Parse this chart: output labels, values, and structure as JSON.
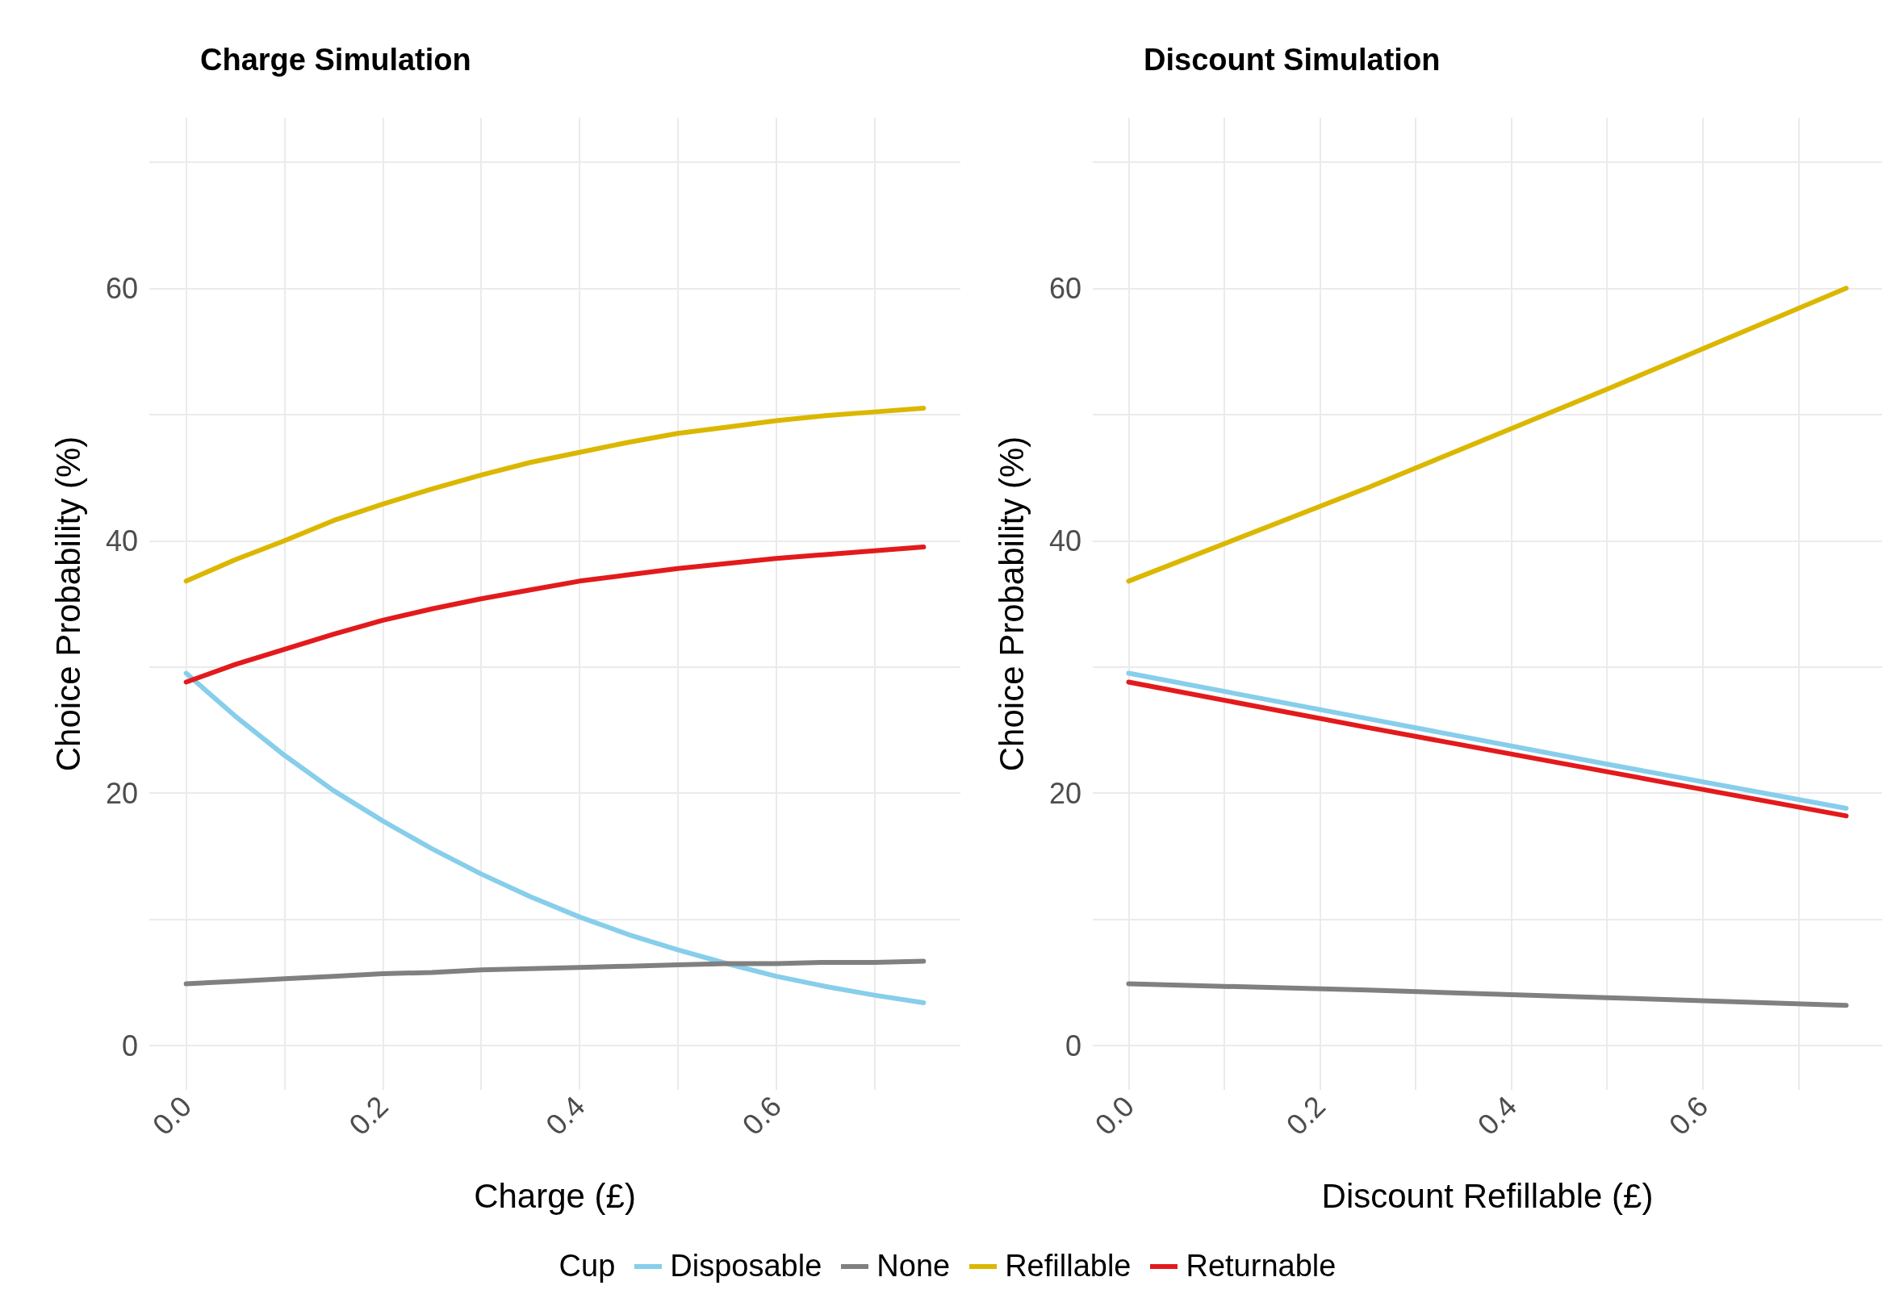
{
  "chart_data": [
    {
      "type": "line",
      "title": "Charge Simulation",
      "xlabel": "Charge (£)",
      "ylabel": "Choice Probability (%)",
      "legend": "bottom",
      "legend_title": "Cup",
      "grid": true,
      "marker": "none",
      "line_style": "solid",
      "x": [
        0,
        0.05,
        0.1,
        0.15,
        0.2,
        0.25,
        0.3,
        0.35,
        0.4,
        0.45,
        0.5,
        0.55,
        0.6,
        0.65,
        0.7,
        0.75
      ],
      "xlim": [
        -0.0375,
        0.7875
      ],
      "xticks": [
        {
          "value": 0,
          "label": "0.0"
        },
        {
          "value": 0.1,
          "label": null
        },
        {
          "value": 0.2,
          "label": "0.2"
        },
        {
          "value": 0.3,
          "label": null
        },
        {
          "value": 0.4,
          "label": "0.4"
        },
        {
          "value": 0.5,
          "label": null
        },
        {
          "value": 0.6,
          "label": "0.6"
        },
        {
          "value": 0.7,
          "label": null
        }
      ],
      "ylim": [
        -3.5,
        73.5
      ],
      "yticks": [
        0,
        {
          "value": 10,
          "label": null
        },
        20,
        {
          "value": 30,
          "label": null
        },
        40,
        {
          "value": 50,
          "label": null
        },
        60,
        {
          "value": 70,
          "label": null
        }
      ],
      "series": [
        {
          "name": "Disposable",
          "color": "#87ceeb",
          "values": [
            29.5,
            26.1,
            23.0,
            20.2,
            17.8,
            15.6,
            13.6,
            11.8,
            10.2,
            8.8,
            7.6,
            6.5,
            5.5,
            4.7,
            4.0,
            3.4
          ]
        },
        {
          "name": "None",
          "color": "#808080",
          "values": [
            4.9,
            5.1,
            5.3,
            5.5,
            5.7,
            5.8,
            6.0,
            6.1,
            6.2,
            6.3,
            6.4,
            6.5,
            6.5,
            6.6,
            6.6,
            6.7
          ]
        },
        {
          "name": "Refillable",
          "color": "#dbb700",
          "values": [
            36.8,
            38.5,
            40.0,
            41.6,
            42.9,
            44.1,
            45.2,
            46.2,
            47.0,
            47.8,
            48.5,
            49.0,
            49.5,
            49.9,
            50.2,
            50.5
          ]
        },
        {
          "name": "Returnable",
          "color": "#e31a1c",
          "values": [
            28.8,
            30.2,
            31.4,
            32.6,
            33.7,
            34.6,
            35.4,
            36.1,
            36.8,
            37.3,
            37.8,
            38.2,
            38.6,
            38.9,
            39.2,
            39.5
          ]
        }
      ]
    },
    {
      "type": "line",
      "title": "Discount Simulation",
      "xlabel": "Discount Refillable (£)",
      "ylabel": "Choice Probability (%)",
      "grid": true,
      "marker": "none",
      "line_style": "solid",
      "x": [
        0,
        0.25,
        0.5,
        0.75
      ],
      "xlim": [
        -0.0375,
        0.7875
      ],
      "xticks": [
        {
          "value": 0,
          "label": "0.0"
        },
        {
          "value": 0.1,
          "label": null
        },
        {
          "value": 0.2,
          "label": "0.2"
        },
        {
          "value": 0.3,
          "label": null
        },
        {
          "value": 0.4,
          "label": "0.4"
        },
        {
          "value": 0.5,
          "label": null
        },
        {
          "value": 0.6,
          "label": "0.6"
        },
        {
          "value": 0.7,
          "label": null
        }
      ],
      "ylim": [
        -3.5,
        73.5
      ],
      "yticks": [
        0,
        {
          "value": 10,
          "label": null
        },
        20,
        {
          "value": 30,
          "label": null
        },
        40,
        {
          "value": 50,
          "label": null
        },
        60,
        {
          "value": 70,
          "label": null
        }
      ],
      "series": [
        {
          "color": "#87ceeb",
          "values": [
            29.5,
            25.9,
            22.3,
            18.8
          ]
        },
        {
          "color": "#808080",
          "values": [
            4.9,
            4.4,
            3.8,
            3.2
          ]
        },
        {
          "color": "#dbb700",
          "values": [
            36.8,
            44.2,
            52.0,
            60.0
          ]
        },
        {
          "color": "#e31a1c",
          "values": [
            28.8,
            25.2,
            21.7,
            18.2
          ]
        }
      ]
    }
  ]
}
